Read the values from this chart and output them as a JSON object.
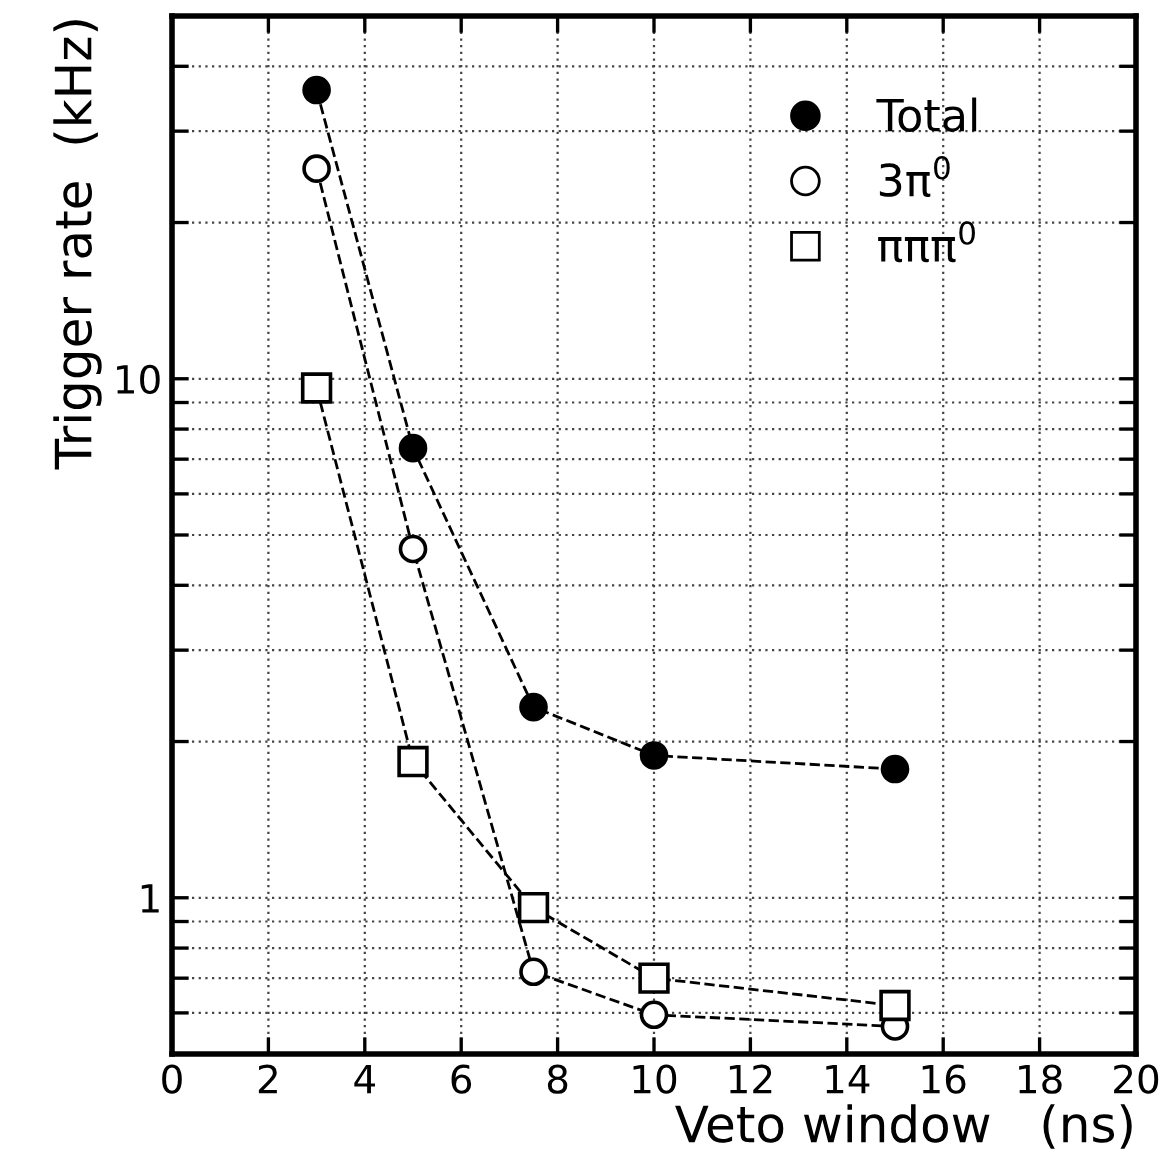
{
  "chart_data": {
    "type": "line",
    "xlabel": "Veto window   (ns)",
    "ylabel": "Trigger rate  (kHz)",
    "log": "y",
    "line_style": "dashed",
    "grid": true,
    "legend": "top right",
    "xlim": [
      0,
      20
    ],
    "xticks": [
      0,
      2,
      4,
      6,
      8,
      10,
      12,
      14,
      16,
      18,
      20
    ],
    "ylim": [
      0.5,
      50
    ],
    "yticks": [
      {
        "value": 0.5,
        "label": null
      },
      {
        "value": 0.6,
        "label": null
      },
      {
        "value": 0.7,
        "label": null
      },
      {
        "value": 0.8,
        "label": null
      },
      {
        "value": 0.9,
        "label": null
      },
      1,
      {
        "value": 2,
        "label": null
      },
      {
        "value": 3,
        "label": null
      },
      {
        "value": 4,
        "label": null
      },
      {
        "value": 5,
        "label": null
      },
      {
        "value": 6,
        "label": null
      },
      {
        "value": 7,
        "label": null
      },
      {
        "value": 8,
        "label": null
      },
      {
        "value": 9,
        "label": null
      },
      10,
      {
        "value": 20,
        "label": null
      },
      {
        "value": 30,
        "label": null
      },
      {
        "value": 40,
        "label": null
      }
    ],
    "x": [
      3,
      5,
      7.5,
      10,
      15
    ],
    "series": [
      {
        "name": "Total",
        "color": "#000000",
        "marker": "circle",
        "values": [
          36,
          7.35,
          2.33,
          1.88,
          1.77
        ]
      },
      {
        "name": "3π$^{0}$",
        "color": "#000000",
        "marker": "circle",
        "values": [
          25.4,
          4.7,
          0.72,
          0.595,
          0.565
        ]
      },
      {
        "name": "πππ$^{0}$",
        "color": "#000000",
        "marker": "square",
        "values": [
          9.6,
          1.83,
          0.957,
          0.7,
          0.62
        ]
      }
    ]
  }
}
